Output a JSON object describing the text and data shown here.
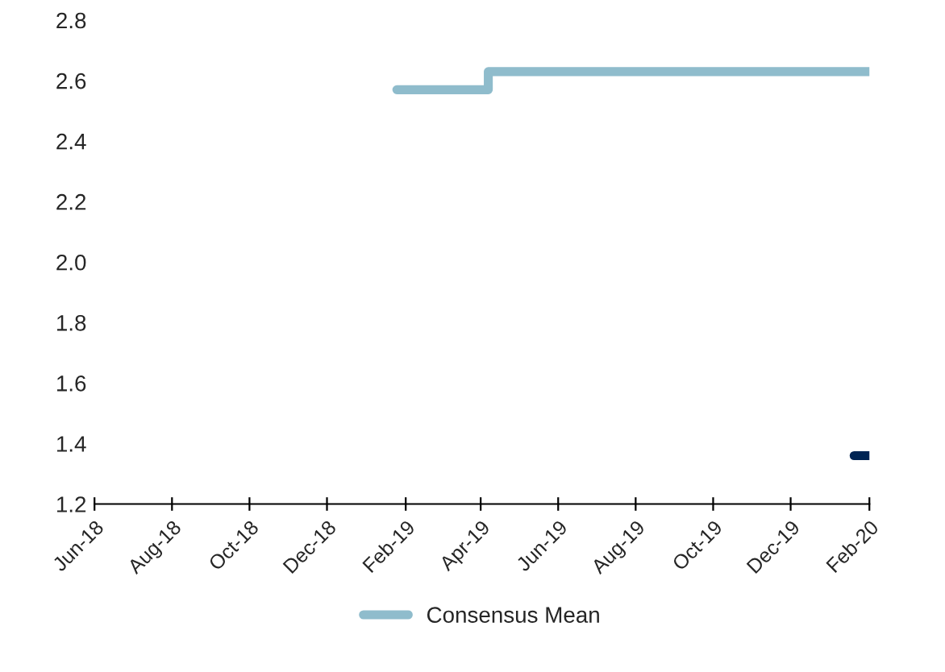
{
  "chart_data": {
    "type": "step",
    "series": [
      {
        "color": "#002554",
        "x": [
          "2020-01-20",
          "2020-02-01"
        ],
        "values": [
          1.36,
          1.36
        ]
      },
      {
        "name": "Consensus Mean",
        "color": "#8fbccc",
        "x": [
          "2019-01-25",
          "2019-04-07",
          "2020-02-01"
        ],
        "values": [
          2.57,
          2.63,
          2.63
        ]
      }
    ],
    "xlim": [
      "2018-06-01",
      "2020-02-01"
    ],
    "xticks": [
      {
        "value": "2018-06-01",
        "label": "Jun-18"
      },
      {
        "value": "2018-08-01",
        "label": "Aug-18"
      },
      {
        "value": "2018-10-01",
        "label": "Oct-18"
      },
      {
        "value": "2018-12-01",
        "label": "Dec-18"
      },
      {
        "value": "2019-02-01",
        "label": "Feb-19"
      },
      {
        "value": "2019-04-01",
        "label": "Apr-19"
      },
      {
        "value": "2019-06-01",
        "label": "Jun-19"
      },
      {
        "value": "2019-08-01",
        "label": "Aug-19"
      },
      {
        "value": "2019-10-01",
        "label": "Oct-19"
      },
      {
        "value": "2019-12-01",
        "label": "Dec-19"
      },
      {
        "value": "2020-02-01",
        "label": "Feb-20"
      }
    ],
    "ylim": [
      1.2,
      2.8
    ],
    "yticks": [
      {
        "value": 1.2,
        "label": "1.2"
      },
      {
        "value": 1.4,
        "label": "1.4"
      },
      {
        "value": 1.6,
        "label": "1.6"
      },
      {
        "value": 1.8,
        "label": "1.8"
      },
      {
        "value": 2.0,
        "label": "2.0"
      },
      {
        "value": 2.2,
        "label": "2.2"
      },
      {
        "value": 2.4,
        "label": "2.4"
      },
      {
        "value": 2.6,
        "label": "2.6"
      },
      {
        "value": 2.8,
        "label": "2.8"
      }
    ],
    "legend": "bottom",
    "grid": false
  }
}
